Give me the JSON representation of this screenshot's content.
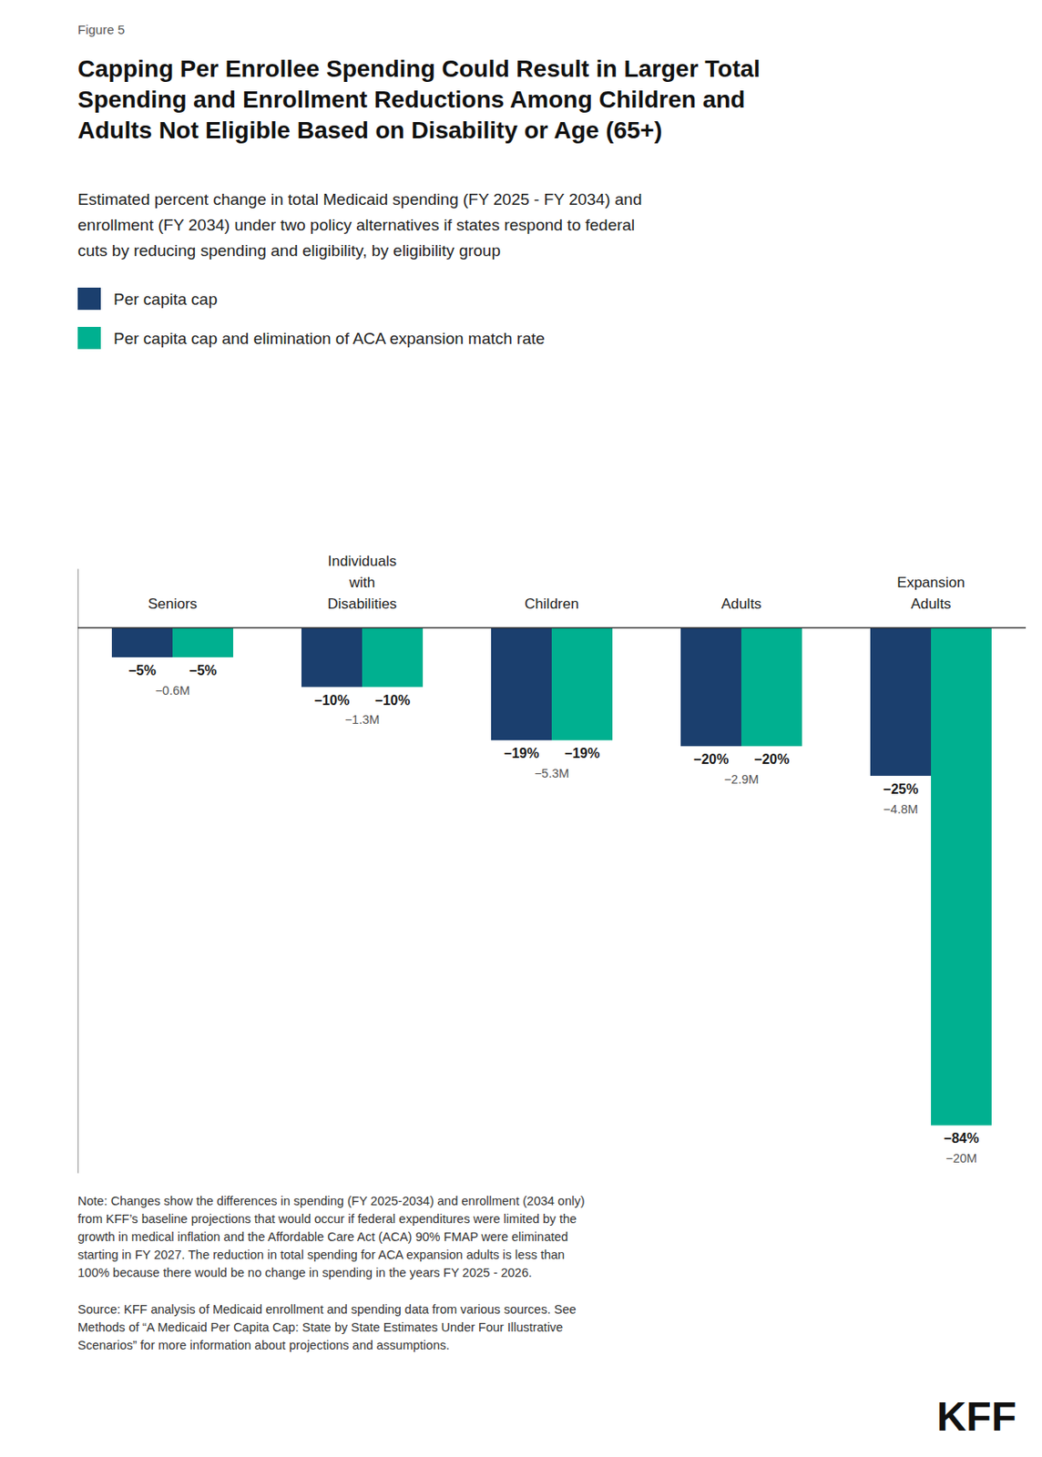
{
  "chart_data": {
    "type": "bar",
    "figure_label": "Figure 5",
    "title": "Capping Per Enrollee Spending Could Result in Larger Total\nSpending and Enrollment Reductions Among Children and\nAdults Not Eligible Based on Disability or Age (65+)",
    "subtitle": "Estimated percent change in total Medicaid spending (FY 2025 - FY 2034) and\nenrollment (FY 2034) under two policy alternatives if states respond to federal\ncuts by reducing spending and eligibility, by eligibility group",
    "categories": [
      "Seniors",
      "Individuals\nwith\nDisabilities",
      "Children",
      "Adults",
      "Expansion\nAdults"
    ],
    "series": [
      {
        "name": "Per capita cap",
        "color": "#1b3f6e",
        "values": [
          -5,
          -10,
          -19,
          -20,
          -25
        ],
        "value_labels": [
          "−5%",
          "−10%",
          "−19%",
          "−20%",
          "−25%"
        ],
        "enrollment_labels": [
          "−0.6M",
          "−1.3M",
          "−5.3M",
          "−2.9M",
          "−4.8M"
        ]
      },
      {
        "name": "Per capita cap and elimination of ACA expansion match rate",
        "color": "#00b090",
        "values": [
          -5,
          -10,
          -19,
          -20,
          -84
        ],
        "value_labels": [
          "−5%",
          "−10%",
          "−19%",
          "−20%",
          "−84%"
        ],
        "enrollment_labels": [
          null,
          null,
          null,
          null,
          "−20M"
        ]
      }
    ],
    "ylim": [
      -92,
      10
    ],
    "yticks": [],
    "tick_labels": false,
    "data_labels": true,
    "legend": "top",
    "note": "Note: Changes show the differences in spending (FY 2025-2034) and enrollment (2034 only)\nfrom KFF’s baseline projections that would occur if federal expenditures were limited by the\ngrowth in medical inflation and the Affordable Care Act (ACA) 90% FMAP were eliminated\nstarting in FY 2027. The reduction in total spending for ACA expansion adults is less than\n100% because there would be no change in spending in the years FY 2025 - 2026.",
    "source": "Source: KFF analysis of Medicaid enrollment and spending data from various sources. See\nMethods of “A Medicaid Per Capita Cap: State by State Estimates Under Four Illustrative\nScenarios” for more information about projections and assumptions.",
    "logo": "KFF"
  }
}
